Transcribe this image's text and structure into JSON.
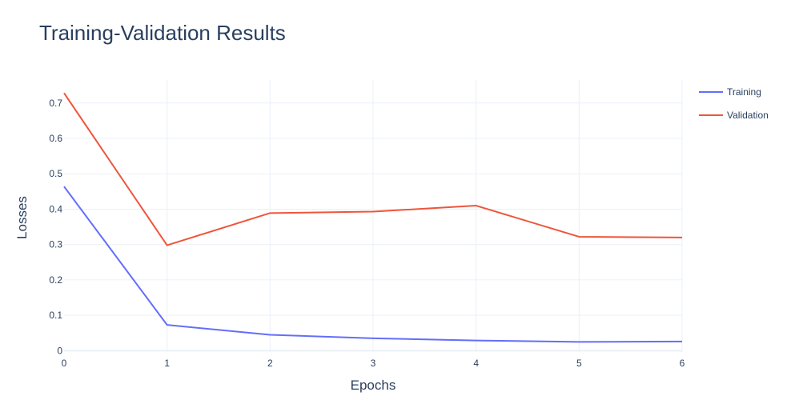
{
  "chart_data": {
    "type": "line",
    "title": "Training-Validation Results",
    "xlabel": "Epochs",
    "ylabel": "Losses",
    "x": [
      0,
      1,
      2,
      3,
      4,
      5,
      6
    ],
    "xticks": [
      "0",
      "1",
      "2",
      "3",
      "4",
      "5",
      "6"
    ],
    "yticks": [
      0,
      0.1,
      0.2,
      0.3,
      0.4,
      0.5,
      0.6,
      0.7
    ],
    "xlim": [
      0,
      6
    ],
    "ylim": [
      -0.0036,
      0.765
    ],
    "grid": true,
    "legend_position": "top-right",
    "series": [
      {
        "name": "Training",
        "color": "#636efa",
        "values": [
          0.464,
          0.073,
          0.045,
          0.035,
          0.029,
          0.025,
          0.026
        ]
      },
      {
        "name": "Validation",
        "color": "#ef553b",
        "values": [
          0.728,
          0.298,
          0.389,
          0.393,
          0.41,
          0.322,
          0.32
        ]
      }
    ]
  }
}
